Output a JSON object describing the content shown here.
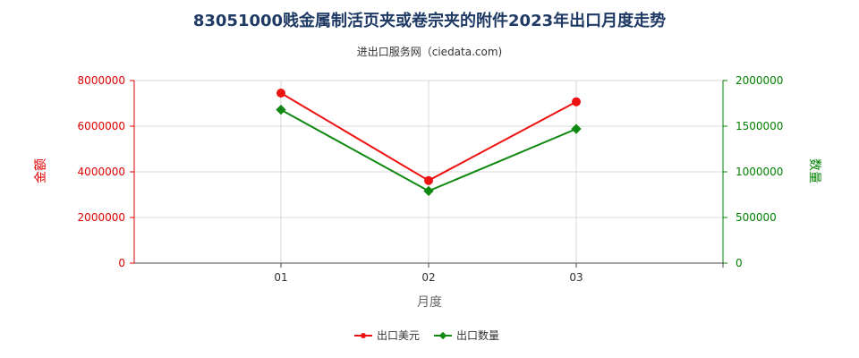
{
  "chart_data": {
    "type": "line",
    "title": "83051000贱金属制活页夹或卷宗夹的附件2023年出口月度走势",
    "subtitle": "进出口服务网（ciedata.com)",
    "xlabel": "月度",
    "ylabel_left": "金额",
    "ylabel_right": "数量",
    "categories": [
      "01",
      "02",
      "03"
    ],
    "ylim_left": [
      0,
      8000000
    ],
    "ylim_right": [
      0,
      2000000
    ],
    "yticks_left": [
      "0",
      "2000000",
      "4000000",
      "6000000",
      "8000000"
    ],
    "yticks_right": [
      "0",
      "500000",
      "1000000",
      "1500000",
      "2000000"
    ],
    "grid": true,
    "legend_position": "bottom",
    "series": [
      {
        "name": "出口美元",
        "axis": "left",
        "color": "#ee1111",
        "values": [
          7450000,
          3620000,
          7070000
        ]
      },
      {
        "name": "出口数量",
        "axis": "right",
        "color": "#118811",
        "values": [
          1680000,
          790000,
          1470000
        ]
      }
    ]
  }
}
